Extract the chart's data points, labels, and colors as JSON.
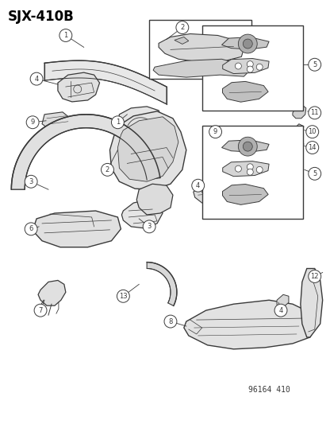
{
  "title": "SJX-410B",
  "part_number": "96164 410",
  "background_color": "#ffffff",
  "line_color": "#3a3a3a",
  "title_fontsize": 12,
  "fig_width": 4.16,
  "fig_height": 5.33,
  "dpi": 100
}
